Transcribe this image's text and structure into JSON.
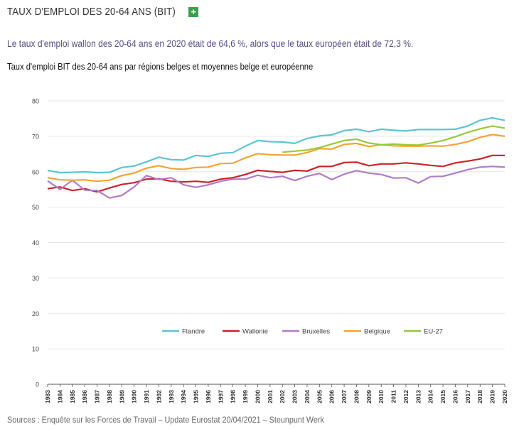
{
  "header": {
    "title": "TAUX D'EMPLOI DES 20-64 ANS (BIT)",
    "expand_label": "+"
  },
  "lead": "Le taux d'emploi wallon des 20-64 ans en 2020 était de 64,6 %, alors que le taux européen était de 72,3 %.",
  "sources": "Sources : Enquête sur les Forces de Travail – Update Eurostat 20/04/2021 – Steunpunt Werk",
  "colors": {
    "flandre": "#5bc5d3",
    "wallonie": "#cc2229",
    "bruxelles": "#b07cc6",
    "belgique": "#f4a432",
    "eu27": "#98c93c",
    "grid": "#e6e6e6",
    "axis": "#555555"
  },
  "chart_data": {
    "type": "line",
    "title": "Taux d'emploi BIT des 20-64 ans par régions belges et moyennes belge et européenne",
    "xlabel": "",
    "ylabel": "",
    "ylim": [
      0,
      80
    ],
    "yticks": [
      0,
      10,
      20,
      30,
      40,
      50,
      60,
      70,
      80
    ],
    "grid": true,
    "legend_position": "bottom",
    "x": [
      "1983",
      "1984",
      "1985",
      "1986",
      "1987",
      "1988",
      "1989",
      "1990",
      "1991",
      "1992",
      "1993",
      "1994",
      "1995",
      "1996",
      "1997",
      "1998",
      "1999",
      "2000",
      "2001",
      "2002",
      "2003",
      "2004",
      "2005",
      "2006",
      "2007",
      "2008",
      "2009",
      "2010",
      "2011",
      "2012",
      "2013",
      "2014",
      "2015",
      "2016",
      "2017",
      "2018",
      "2019",
      "2020"
    ],
    "series": [
      {
        "name": "Flandre",
        "color_key": "flandre",
        "values": [
          60.4,
          59.7,
          59.8,
          60.0,
          59.7,
          59.8,
          61.2,
          61.6,
          62.8,
          64.1,
          63.4,
          63.3,
          64.6,
          64.3,
          65.2,
          65.4,
          67.2,
          68.8,
          68.5,
          68.4,
          68.0,
          69.4,
          70.1,
          70.4,
          71.6,
          72.0,
          71.3,
          72.0,
          71.7,
          71.5,
          71.9,
          71.9,
          71.9,
          72.0,
          72.9,
          74.5,
          75.2,
          74.5
        ]
      },
      {
        "name": "Wallonie",
        "color_key": "wallonie",
        "values": [
          55.2,
          55.7,
          54.7,
          55.2,
          54.3,
          55.4,
          56.4,
          56.9,
          57.9,
          58.0,
          57.3,
          57.1,
          57.3,
          57.0,
          57.9,
          58.3,
          59.2,
          60.4,
          60.1,
          59.8,
          60.4,
          60.2,
          61.5,
          61.5,
          62.6,
          62.7,
          61.7,
          62.2,
          62.2,
          62.5,
          62.2,
          61.8,
          61.5,
          62.5,
          63.0,
          63.6,
          64.6,
          64.6
        ]
      },
      {
        "name": "Bruxelles",
        "color_key": "bruxelles",
        "values": [
          57.4,
          55.0,
          57.6,
          54.8,
          54.7,
          52.6,
          53.3,
          55.7,
          58.9,
          57.8,
          58.3,
          56.3,
          55.6,
          56.3,
          57.3,
          57.9,
          57.9,
          59.0,
          58.3,
          58.7,
          57.5,
          58.7,
          59.5,
          57.8,
          59.3,
          60.3,
          59.6,
          59.2,
          58.2,
          58.3,
          56.8,
          58.6,
          58.7,
          59.6,
          60.6,
          61.3,
          61.5,
          61.3
        ]
      },
      {
        "name": "Belgique",
        "color_key": "belgique",
        "values": [
          58.3,
          57.7,
          57.6,
          57.7,
          57.3,
          57.6,
          58.9,
          59.6,
          61.0,
          61.7,
          60.9,
          60.7,
          61.2,
          61.3,
          62.3,
          62.4,
          63.9,
          65.1,
          64.8,
          64.7,
          64.7,
          65.4,
          66.5,
          66.4,
          67.7,
          68.0,
          67.1,
          67.6,
          67.3,
          67.2,
          67.2,
          67.3,
          67.2,
          67.7,
          68.5,
          69.7,
          70.5,
          70.0
        ]
      },
      {
        "name": "EU-27",
        "color_key": "eu27",
        "values": [
          null,
          null,
          null,
          null,
          null,
          null,
          null,
          null,
          null,
          null,
          null,
          null,
          null,
          null,
          null,
          null,
          null,
          null,
          null,
          65.5,
          65.8,
          66.1,
          66.8,
          67.8,
          68.8,
          69.2,
          68.1,
          67.6,
          67.8,
          67.6,
          67.5,
          68.1,
          68.8,
          69.9,
          71.1,
          72.1,
          72.9,
          72.3
        ]
      }
    ]
  }
}
